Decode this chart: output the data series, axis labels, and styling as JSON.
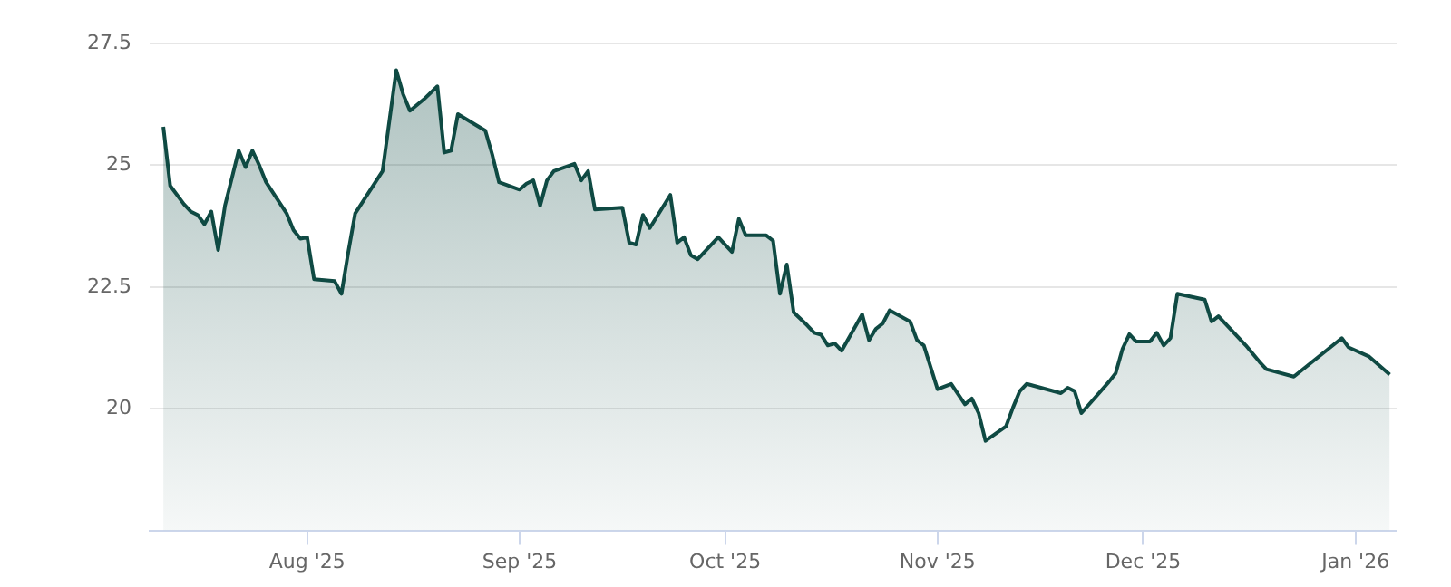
{
  "chart_data": {
    "type": "area",
    "x": [
      "2025-07-11",
      "2025-07-12",
      "2025-07-14",
      "2025-07-15",
      "2025-07-16",
      "2025-07-17",
      "2025-07-18",
      "2025-07-19",
      "2025-07-20",
      "2025-07-22",
      "2025-07-23",
      "2025-07-24",
      "2025-07-25",
      "2025-07-26",
      "2025-07-29",
      "2025-07-30",
      "2025-07-31",
      "2025-08-01",
      "2025-08-02",
      "2025-08-05",
      "2025-08-06",
      "2025-08-07",
      "2025-08-08",
      "2025-08-12",
      "2025-08-14",
      "2025-08-15",
      "2025-08-16",
      "2025-08-18",
      "2025-08-20",
      "2025-08-21",
      "2025-08-22",
      "2025-08-23",
      "2025-08-27",
      "2025-08-28",
      "2025-08-29",
      "2025-09-01",
      "2025-09-02",
      "2025-09-03",
      "2025-09-04",
      "2025-09-05",
      "2025-09-06",
      "2025-09-09",
      "2025-09-10",
      "2025-09-11",
      "2025-09-12",
      "2025-09-16",
      "2025-09-17",
      "2025-09-18",
      "2025-09-19",
      "2025-09-20",
      "2025-09-23",
      "2025-09-24",
      "2025-09-25",
      "2025-09-26",
      "2025-09-27",
      "2025-09-30",
      "2025-10-01",
      "2025-10-02",
      "2025-10-03",
      "2025-10-04",
      "2025-10-07",
      "2025-10-08",
      "2025-10-09",
      "2025-10-10",
      "2025-10-11",
      "2025-10-13",
      "2025-10-14",
      "2025-10-15",
      "2025-10-16",
      "2025-10-17",
      "2025-10-18",
      "2025-10-21",
      "2025-10-22",
      "2025-10-23",
      "2025-10-24",
      "2025-10-25",
      "2025-10-28",
      "2025-10-29",
      "2025-10-30",
      "2025-11-01",
      "2025-11-03",
      "2025-11-05",
      "2025-11-06",
      "2025-11-07",
      "2025-11-08",
      "2025-11-11",
      "2025-11-12",
      "2025-11-13",
      "2025-11-14",
      "2025-11-19",
      "2025-11-20",
      "2025-11-21",
      "2025-11-22",
      "2025-11-26",
      "2025-11-27",
      "2025-11-28",
      "2025-11-29",
      "2025-11-30",
      "2025-12-02",
      "2025-12-03",
      "2025-12-04",
      "2025-12-05",
      "2025-12-06",
      "2025-12-10",
      "2025-12-11",
      "2025-12-12",
      "2025-12-16",
      "2025-12-18",
      "2025-12-19",
      "2025-12-23",
      "2025-12-30",
      "2025-12-31",
      "2026-01-03",
      "2026-01-06"
    ],
    "series": [
      {
        "color": "#0f4a43",
        "values": [
          25.79,
          24.58,
          24.2,
          24.05,
          23.98,
          23.79,
          24.05,
          23.26,
          24.17,
          25.3,
          24.96,
          25.3,
          25.0,
          24.65,
          24.01,
          23.67,
          23.49,
          23.52,
          22.66,
          22.62,
          22.36,
          23.22,
          24.01,
          24.88,
          26.95,
          26.46,
          26.12,
          26.35,
          26.62,
          25.26,
          25.3,
          26.05,
          25.71,
          25.22,
          24.65,
          24.5,
          24.62,
          24.69,
          24.17,
          24.69,
          24.88,
          25.03,
          24.69,
          24.88,
          24.09,
          24.13,
          23.41,
          23.37,
          23.98,
          23.71,
          24.39,
          23.41,
          23.52,
          23.15,
          23.07,
          23.52,
          23.37,
          23.22,
          23.9,
          23.56,
          23.56,
          23.45,
          22.36,
          22.96,
          21.98,
          21.71,
          21.56,
          21.52,
          21.3,
          21.34,
          21.19,
          21.94,
          21.41,
          21.64,
          21.75,
          22.02,
          21.79,
          21.41,
          21.3,
          20.4,
          20.51,
          20.09,
          20.21,
          19.91,
          19.34,
          19.64,
          20.02,
          20.36,
          20.51,
          20.32,
          20.43,
          20.36,
          19.91,
          20.55,
          20.73,
          21.23,
          21.53,
          21.38,
          21.38,
          21.56,
          21.3,
          21.45,
          22.36,
          22.24,
          21.79,
          21.9,
          21.3,
          20.96,
          20.81,
          20.66,
          21.45,
          21.26,
          21.07,
          20.7
        ]
      }
    ],
    "xlim": [
      "2025-07-09",
      "2026-01-07"
    ],
    "xticks": [
      {
        "value": "2025-08-01",
        "label": "Aug '25"
      },
      {
        "value": "2025-09-01",
        "label": "Sep '25"
      },
      {
        "value": "2025-10-01",
        "label": "Oct '25"
      },
      {
        "value": "2025-11-01",
        "label": "Nov '25"
      },
      {
        "value": "2025-12-01",
        "label": "Dec '25"
      },
      {
        "value": "2026-01-01",
        "label": "Jan '26"
      }
    ],
    "ylim": [
      17.5,
      27.5
    ],
    "yticks": [
      20,
      22.5,
      25,
      27.5
    ],
    "grid": "y",
    "legend": false
  }
}
